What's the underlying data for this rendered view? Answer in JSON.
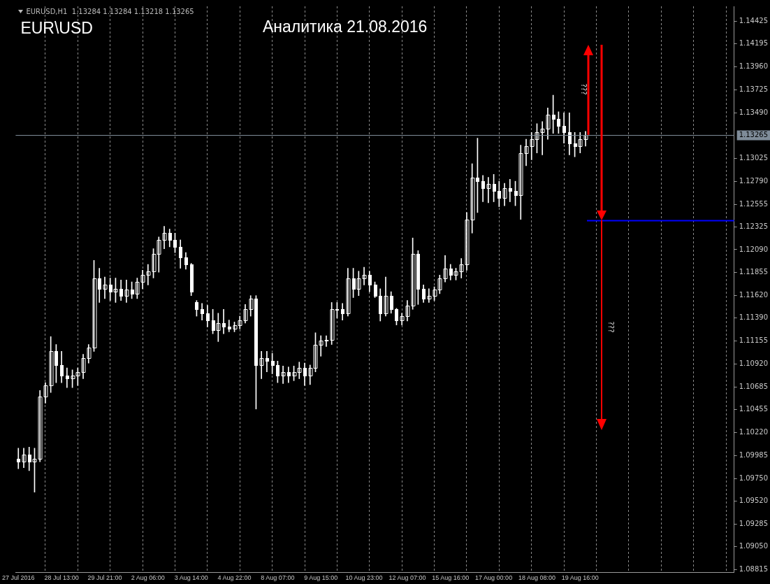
{
  "chart_data": {
    "type": "candlestick",
    "title": "Аналитика 21.08.2016",
    "subtitle": "EUR\\USD",
    "annotations": [
      "EURUSD,H1  1.13284 1.13284 1.13218 1.13265",
      "???",
      "???"
    ],
    "categories": [
      "27 Jul 2016",
      null,
      null,
      null,
      null,
      null,
      null,
      null,
      "28 Jul 13:00",
      null,
      null,
      null,
      null,
      null,
      null,
      null,
      "29 Jul 21:00",
      null,
      null,
      null,
      null,
      null,
      null,
      null,
      "2 Aug 06:00",
      null,
      null,
      null,
      null,
      null,
      null,
      null,
      "3 Aug 14:00",
      null,
      null,
      null,
      null,
      null,
      null,
      null,
      "4 Aug 22:00",
      null,
      null,
      null,
      null,
      null,
      null,
      null,
      "8 Aug 07:00",
      null,
      null,
      null,
      null,
      null,
      null,
      null,
      "9 Aug 15:00",
      null,
      null,
      null,
      null,
      null,
      null,
      null,
      "10 Aug 23:00",
      null,
      null,
      null,
      null,
      null,
      null,
      null,
      "12 Aug 07:00",
      null,
      null,
      null,
      null,
      null,
      null,
      null,
      "15 Aug 16:00",
      null,
      null,
      null,
      null,
      null,
      null,
      null,
      "17 Aug 00:00",
      null,
      null,
      null,
      null,
      null,
      null,
      null,
      "18 Aug 08:00",
      null,
      null,
      null,
      null,
      null,
      null,
      null,
      "19 Aug 16:00",
      null,
      null,
      null,
      null,
      null,
      null,
      null,
      null,
      null,
      null,
      null,
      null,
      null,
      null,
      null,
      null,
      null,
      null,
      null,
      null,
      null,
      null,
      null,
      null,
      null,
      null,
      null,
      null
    ],
    "color": "#ffffff",
    "ohlc": [
      [
        1.0995,
        1.1006,
        1.0985,
        1.0992
      ],
      [
        1.0992,
        1.1006,
        1.0986,
        1.0999
      ],
      [
        1.0999,
        1.1007,
        1.0983,
        1.0992
      ],
      [
        1.0992,
        1.1006,
        1.0961,
        1.0995
      ],
      [
        1.0995,
        1.1065,
        1.0992,
        1.1059
      ],
      [
        1.1059,
        1.1073,
        1.1052,
        1.107
      ],
      [
        1.107,
        1.112,
        1.1063,
        1.1105
      ],
      [
        1.1105,
        1.1112,
        1.1073,
        1.1091
      ],
      [
        1.1091,
        1.1105,
        1.1073,
        1.108
      ],
      [
        1.108,
        1.1088,
        1.1068,
        1.1077
      ],
      [
        1.1077,
        1.1086,
        1.1068,
        1.108
      ],
      [
        1.108,
        1.1088,
        1.107,
        1.1084
      ],
      [
        1.1084,
        1.1102,
        1.1077,
        1.1098
      ],
      [
        1.1098,
        1.1112,
        1.1093,
        1.1109
      ],
      [
        1.1109,
        1.1198,
        1.1105,
        1.118
      ],
      [
        1.118,
        1.119,
        1.1155,
        1.1169
      ],
      [
        1.1169,
        1.1181,
        1.1159,
        1.1173
      ],
      [
        1.1173,
        1.118,
        1.1157,
        1.1166
      ],
      [
        1.1166,
        1.118,
        1.1155,
        1.1169
      ],
      [
        1.1169,
        1.1178,
        1.1157,
        1.1162
      ],
      [
        1.1162,
        1.1178,
        1.1155,
        1.1168
      ],
      [
        1.1168,
        1.1176,
        1.1159,
        1.1164
      ],
      [
        1.1164,
        1.118,
        1.1159,
        1.1176
      ],
      [
        1.1176,
        1.1188,
        1.1169,
        1.1183
      ],
      [
        1.1183,
        1.1194,
        1.1173,
        1.1187
      ],
      [
        1.1187,
        1.121,
        1.118,
        1.1205
      ],
      [
        1.1205,
        1.1222,
        1.1186,
        1.1219
      ],
      [
        1.1219,
        1.1233,
        1.121,
        1.1226
      ],
      [
        1.1226,
        1.123,
        1.1212,
        1.1219
      ],
      [
        1.1219,
        1.1226,
        1.1206,
        1.1212
      ],
      [
        1.1212,
        1.1219,
        1.119,
        1.1201
      ],
      [
        1.1201,
        1.1206,
        1.1189,
        1.1194
      ],
      [
        1.1194,
        1.1195,
        1.1162,
        1.1166
      ],
      [
        1.1155,
        1.1157,
        1.1141,
        1.1148
      ],
      [
        1.1148,
        1.1154,
        1.1137,
        1.1144
      ],
      [
        1.1144,
        1.1152,
        1.113,
        1.1137
      ],
      [
        1.1137,
        1.1148,
        1.1123,
        1.1127
      ],
      [
        1.1127,
        1.1144,
        1.1115,
        1.1134
      ],
      [
        1.1134,
        1.1148,
        1.1123,
        1.113
      ],
      [
        1.113,
        1.1137,
        1.1125,
        1.1128
      ],
      [
        1.1128,
        1.1135,
        1.1125,
        1.1132
      ],
      [
        1.1132,
        1.1141,
        1.1128,
        1.1137
      ],
      [
        1.1137,
        1.1153,
        1.1134,
        1.1148
      ],
      [
        1.1148,
        1.1162,
        1.1141,
        1.1159
      ],
      [
        1.1159,
        1.1162,
        1.1046,
        1.1091
      ],
      [
        1.1091,
        1.1105,
        1.1077,
        1.1098
      ],
      [
        1.1098,
        1.1105,
        1.1084,
        1.1095
      ],
      [
        1.1095,
        1.1103,
        1.1082,
        1.1091
      ],
      [
        1.1091,
        1.1095,
        1.1073,
        1.108
      ],
      [
        1.108,
        1.109,
        1.1072,
        1.1084
      ],
      [
        1.1084,
        1.1089,
        1.1073,
        1.108
      ],
      [
        1.108,
        1.109,
        1.1075,
        1.1084
      ],
      [
        1.1084,
        1.1094,
        1.1077,
        1.1088
      ],
      [
        1.1088,
        1.1093,
        1.107,
        1.108
      ],
      [
        1.108,
        1.1091,
        1.1071,
        1.1088
      ],
      [
        1.1088,
        1.1124,
        1.1084,
        1.1112
      ],
      [
        1.1112,
        1.1121,
        1.11,
        1.1116
      ],
      [
        1.1116,
        1.1121,
        1.111,
        1.1117
      ],
      [
        1.1117,
        1.1155,
        1.1112,
        1.1148
      ],
      [
        1.1148,
        1.1155,
        1.1139,
        1.1148
      ],
      [
        1.1148,
        1.1154,
        1.1137,
        1.1144
      ],
      [
        1.1144,
        1.119,
        1.1141,
        1.118
      ],
      [
        1.118,
        1.119,
        1.116,
        1.1169
      ],
      [
        1.1169,
        1.1187,
        1.1162,
        1.118
      ],
      [
        1.118,
        1.1191,
        1.1173,
        1.1183
      ],
      [
        1.1183,
        1.1187,
        1.1166,
        1.1173
      ],
      [
        1.1173,
        1.1176,
        1.116,
        1.1162
      ],
      [
        1.1162,
        1.1169,
        1.1136,
        1.1144
      ],
      [
        1.1144,
        1.1181,
        1.1141,
        1.1162
      ],
      [
        1.1162,
        1.1166,
        1.1144,
        1.1148
      ],
      [
        1.1148,
        1.1149,
        1.1132,
        1.1137
      ],
      [
        1.1137,
        1.1144,
        1.1132,
        1.1141
      ],
      [
        1.1141,
        1.1157,
        1.1136,
        1.1152
      ],
      [
        1.1152,
        1.1221,
        1.1148,
        1.1205
      ],
      [
        1.1205,
        1.1208,
        1.1153,
        1.1169
      ],
      [
        1.1169,
        1.1173,
        1.1155,
        1.1159
      ],
      [
        1.1159,
        1.1169,
        1.1155,
        1.1162
      ],
      [
        1.1162,
        1.1171,
        1.1157,
        1.1168
      ],
      [
        1.1168,
        1.1183,
        1.1164,
        1.118
      ],
      [
        1.118,
        1.1203,
        1.1176,
        1.119
      ],
      [
        1.119,
        1.1194,
        1.1178,
        1.1183
      ],
      [
        1.1183,
        1.119,
        1.1178,
        1.1187
      ],
      [
        1.1187,
        1.12,
        1.118,
        1.1194
      ],
      [
        1.1194,
        1.1247,
        1.1188,
        1.124
      ],
      [
        1.124,
        1.1297,
        1.1226,
        1.1283
      ],
      [
        1.1283,
        1.1323,
        1.1247,
        1.1279
      ],
      [
        1.1279,
        1.1285,
        1.1258,
        1.1272
      ],
      [
        1.1272,
        1.1283,
        1.1257,
        1.1276
      ],
      [
        1.1276,
        1.1286,
        1.1258,
        1.1269
      ],
      [
        1.1269,
        1.1279,
        1.1253,
        1.1262
      ],
      [
        1.1262,
        1.1277,
        1.1254,
        1.1272
      ],
      [
        1.1272,
        1.1281,
        1.1258,
        1.1269
      ],
      [
        1.1269,
        1.1279,
        1.1254,
        1.1265
      ],
      [
        1.1265,
        1.1316,
        1.124,
        1.1308
      ],
      [
        1.1308,
        1.1322,
        1.1295,
        1.1315
      ],
      [
        1.1315,
        1.1329,
        1.1301,
        1.1322
      ],
      [
        1.1322,
        1.1338,
        1.1308,
        1.1329
      ],
      [
        1.1329,
        1.134,
        1.1306,
        1.1333
      ],
      [
        1.1333,
        1.1354,
        1.1322,
        1.1347
      ],
      [
        1.1347,
        1.1367,
        1.1328,
        1.1343
      ],
      [
        1.1343,
        1.135,
        1.1328,
        1.1336
      ],
      [
        1.1336,
        1.1349,
        1.1318,
        1.1329
      ],
      [
        1.1329,
        1.1349,
        1.1306,
        1.1318
      ],
      [
        1.1318,
        1.1329,
        1.1304,
        1.1315
      ],
      [
        1.1315,
        1.1329,
        1.1308,
        1.1322
      ],
      [
        1.1322,
        1.133,
        1.1315,
        1.13265
      ],
      null,
      null,
      null,
      null,
      null,
      null,
      null,
      null,
      null,
      null,
      null,
      null,
      null,
      null,
      null,
      null,
      null,
      null,
      null,
      null,
      null,
      null,
      null,
      null,
      null,
      null,
      null
    ],
    "ylim": [
      1.0879,
      1.1458
    ],
    "yticks": [
      1.08815,
      {
        "value": 1.0905,
        "label": "1.09050"
      },
      1.09285,
      {
        "value": 1.0952,
        "label": "1.09520"
      },
      {
        "value": 1.0975,
        "label": "1.09750"
      },
      1.09985,
      {
        "value": 1.1022,
        "label": "1.10220"
      },
      1.10455,
      1.10685,
      {
        "value": 1.1092,
        "label": "1.10920"
      },
      1.11155,
      {
        "value": 1.1139,
        "label": "1.11390"
      },
      {
        "value": 1.1162,
        "label": "1.11620"
      },
      1.11855,
      {
        "value": 1.1209,
        "label": "1.12090"
      },
      1.12325,
      1.12555,
      {
        "value": 1.1279,
        "label": "1.12790"
      },
      1.13025,
      {
        "value": 1.1349,
        "label": "1.13490"
      },
      1.13725,
      {
        "value": 1.1396,
        "label": "1.13960"
      },
      1.14195,
      1.14425
    ],
    "ref_lines": [
      {
        "axis": "y",
        "value": 1.13265,
        "label": "1.13265",
        "color": "#7f8c99"
      },
      {
        "axis": "y",
        "value": 1.1239,
        "color": "#0000ff"
      }
    ],
    "grid": "x",
    "legend": false
  }
}
